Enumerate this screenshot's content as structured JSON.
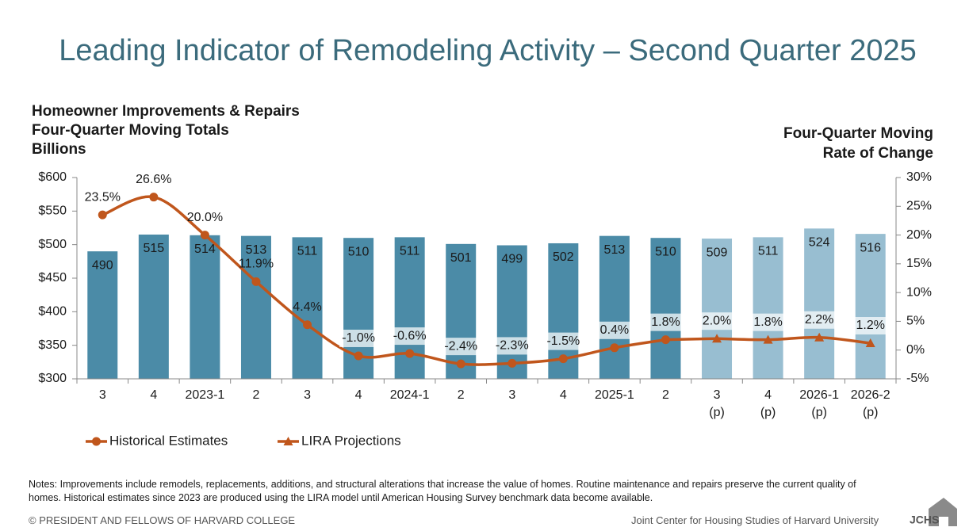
{
  "chart_data": {
    "type": "bar_line",
    "title": "Leading Indicator of Remodeling Activity – Second Quarter 2025",
    "y_label": [
      "Homeowner Improvements & Repairs",
      "Four-Quarter Moving Totals",
      "Billions"
    ],
    "y2_label": [
      "Four-Quarter Moving",
      "Rate of Change"
    ],
    "categories": [
      "3",
      "4",
      "2023-1",
      "2",
      "3",
      "4",
      "2024-1",
      "2",
      "3",
      "4",
      "2025-1",
      "2",
      "3\n(p)",
      "4\n(p)",
      "2026-1\n(p)",
      "2026-2\n(p)"
    ],
    "series": [
      {
        "values": [
          490,
          515,
          514,
          513,
          511,
          510,
          511,
          501,
          499,
          502,
          513,
          510,
          509,
          511,
          524,
          516
        ],
        "colors": [
          "#4b8ba7",
          "#4b8ba7",
          "#4b8ba7",
          "#4b8ba7",
          "#4b8ba7",
          "#4b8ba7",
          "#4b8ba7",
          "#4b8ba7",
          "#4b8ba7",
          "#4b8ba7",
          "#4b8ba7",
          "#4b8ba7",
          "#98bed1",
          "#98bed1",
          "#98bed1",
          "#98bed1"
        ]
      },
      {
        "name": "Historical Estimates",
        "color": "#c0561c",
        "axis": "y2",
        "marker": "circle",
        "values": [
          23.5,
          26.6,
          20.0,
          11.9,
          4.4,
          -1.0,
          -0.6,
          -2.4,
          -2.3,
          -1.5,
          0.4,
          1.8,
          null,
          null,
          null,
          null
        ],
        "value_labels": [
          "23.5%",
          "26.6%",
          "20.0%",
          "11.9%",
          "4.4%",
          "-1.0%",
          "-0.6%",
          "-2.4%",
          "-2.3%",
          "-1.5%",
          "0.4%",
          "1.8%",
          null,
          null,
          null,
          null
        ]
      },
      {
        "name": "LIRA Projections",
        "color": "#c0561c",
        "axis": "y2",
        "marker": "triangle",
        "values": [
          null,
          null,
          null,
          null,
          null,
          null,
          null,
          null,
          null,
          null,
          null,
          null,
          2.0,
          1.8,
          2.2,
          1.2
        ],
        "value_labels": [
          null,
          null,
          null,
          null,
          null,
          null,
          null,
          null,
          null,
          null,
          null,
          null,
          "2.0%",
          "1.8%",
          "2.2%",
          "1.2%"
        ]
      }
    ],
    "ylim": [
      300,
      600
    ],
    "yticks": [
      {
        "value": 300,
        "label": "$300"
      },
      {
        "value": 350,
        "label": "$350"
      },
      {
        "value": 400,
        "label": "$400"
      },
      {
        "value": 450,
        "label": "$450"
      },
      {
        "value": 500,
        "label": "$500"
      },
      {
        "value": 550,
        "label": "$550"
      },
      {
        "value": 600,
        "label": "$600"
      }
    ],
    "y2lim": [
      -5,
      30
    ],
    "y2ticks": [
      {
        "value": -5,
        "label": "-5%"
      },
      {
        "value": 0,
        "label": "0%"
      },
      {
        "value": 5,
        "label": "5%"
      },
      {
        "value": 10,
        "label": "10%"
      },
      {
        "value": 15,
        "label": "15%"
      },
      {
        "value": 20,
        "label": "20%"
      },
      {
        "value": 25,
        "label": "25%"
      },
      {
        "value": 30,
        "label": "30%"
      }
    ]
  },
  "notes": "Notes: Improvements include remodels, replacements, additions, and structural alterations that increase the value of homes. Routine maintenance and repairs preserve the current quality of homes. Historical estimates since 2023 are produced using the LIRA model until American Housing Survey benchmark data become available.",
  "footer": {
    "left": "© PRESIDENT AND FELLOWS OF HARVARD COLLEGE",
    "right": "Joint Center for Housing Studies of Harvard University",
    "logo": "JCHS"
  }
}
